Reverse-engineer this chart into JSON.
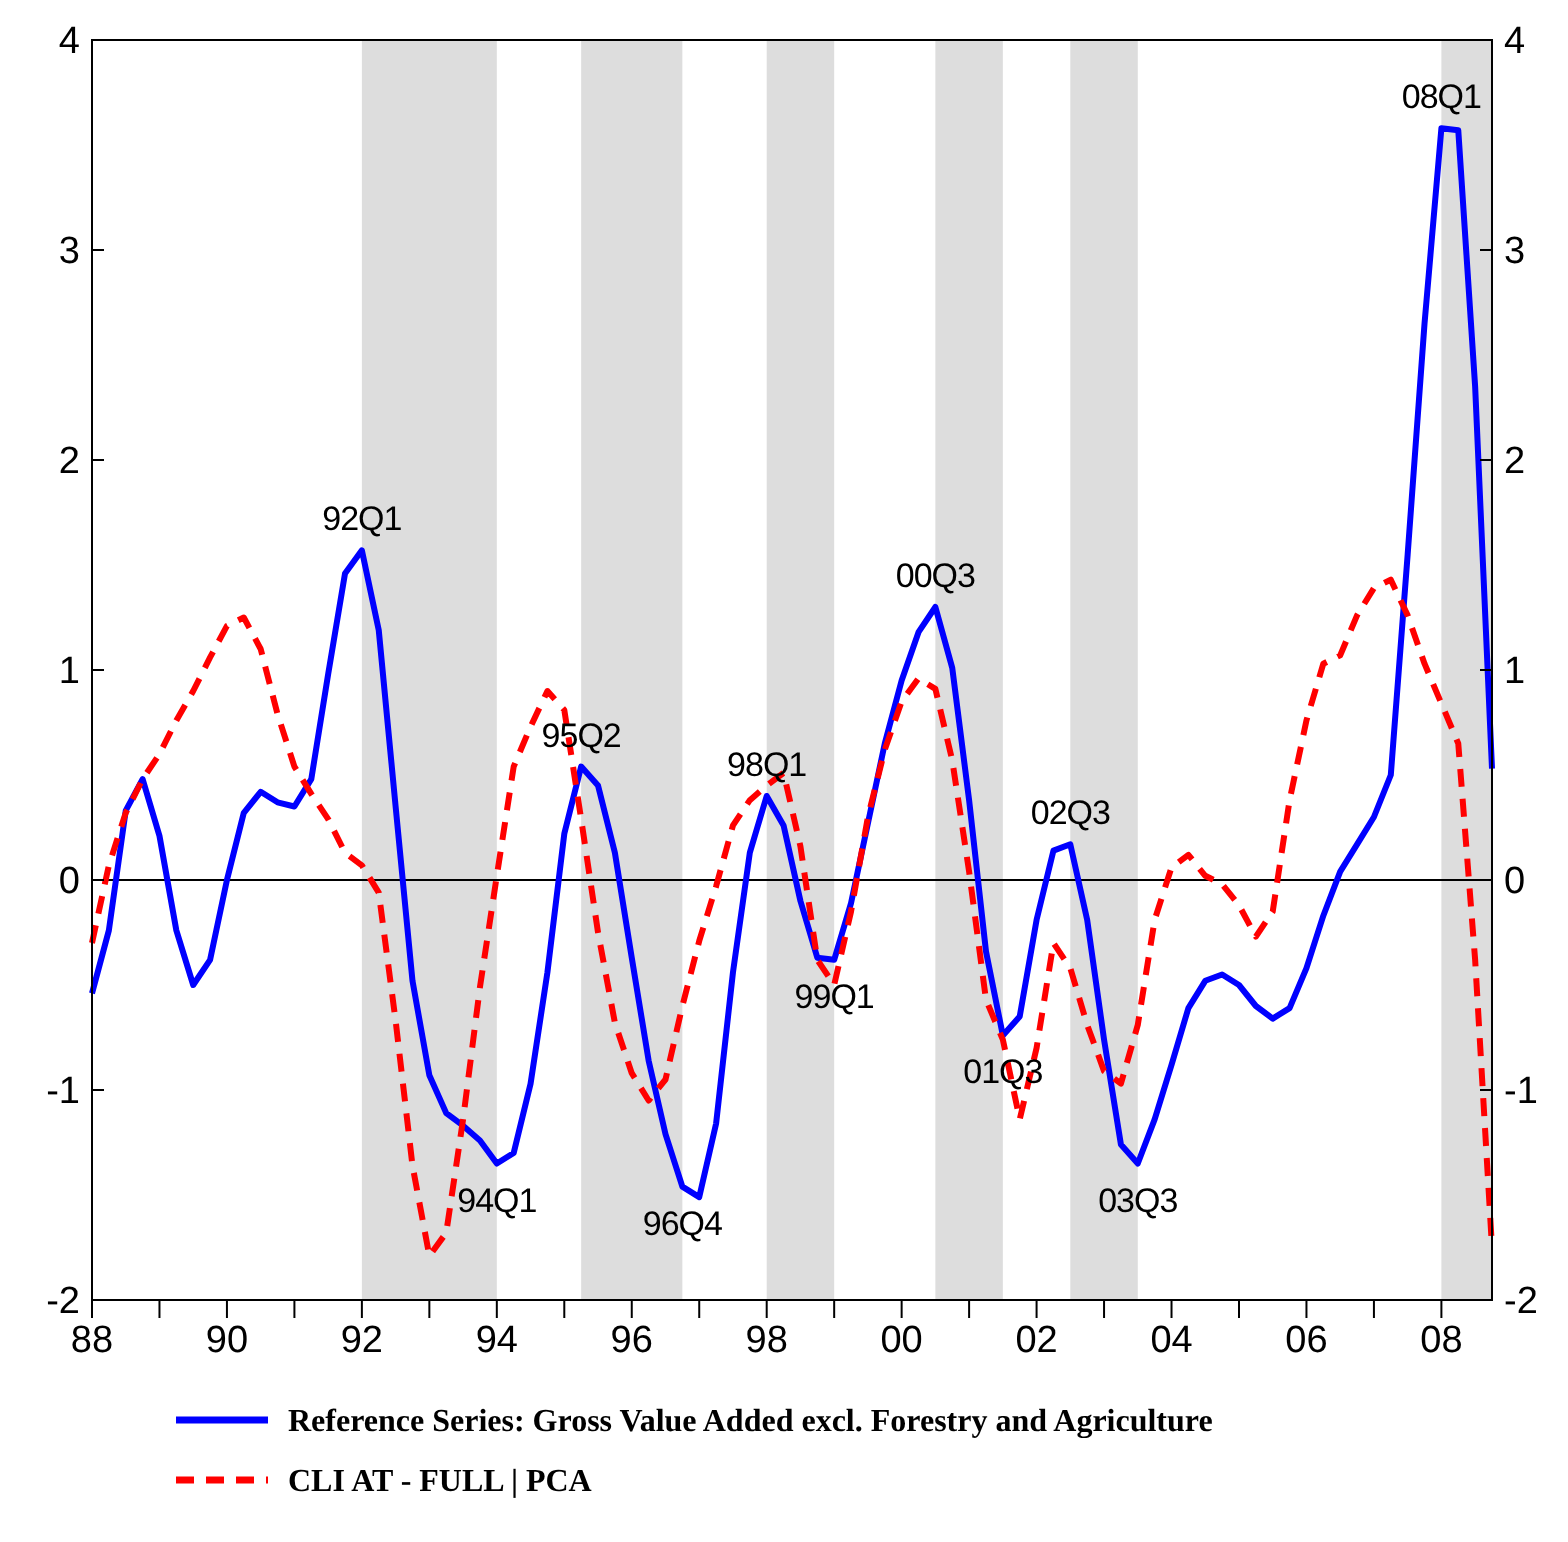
{
  "chart_data": {
    "type": "line",
    "x": [
      1988,
      1988.25,
      1988.5,
      1988.75,
      1989,
      1989.25,
      1989.5,
      1989.75,
      1990,
      1990.25,
      1990.5,
      1990.75,
      1991,
      1991.25,
      1991.5,
      1991.75,
      1992,
      1992.25,
      1992.5,
      1992.75,
      1993,
      1993.25,
      1993.5,
      1993.75,
      1994,
      1994.25,
      1994.5,
      1994.75,
      1995,
      1995.25,
      1995.5,
      1995.75,
      1996,
      1996.25,
      1996.5,
      1996.75,
      1997,
      1997.25,
      1997.5,
      1997.75,
      1998,
      1998.25,
      1998.5,
      1998.75,
      1999,
      1999.25,
      1999.5,
      1999.75,
      2000,
      2000.25,
      2000.5,
      2000.75,
      2001,
      2001.25,
      2001.5,
      2001.75,
      2002,
      2002.25,
      2002.5,
      2002.75,
      2003,
      2003.25,
      2003.5,
      2003.75,
      2004,
      2004.25,
      2004.5,
      2004.75,
      2005,
      2005.25,
      2005.5,
      2005.75,
      2006,
      2006.25,
      2006.5,
      2006.75,
      2007,
      2007.25,
      2007.5,
      2007.75,
      2008,
      2008.25,
      2008.5,
      2008.75
    ],
    "series": [
      {
        "name": "Reference Series: Gross Value Added excl. Forestry and Agriculture",
        "color": "#0000ff",
        "line_style": "solid",
        "values": [
          -0.54,
          -0.24,
          0.33,
          0.48,
          0.21,
          -0.24,
          -0.5,
          -0.38,
          0.0,
          0.32,
          0.42,
          0.37,
          0.35,
          0.48,
          0.98,
          1.46,
          1.57,
          1.19,
          0.35,
          -0.48,
          -0.93,
          -1.11,
          -1.17,
          -1.24,
          -1.35,
          -1.3,
          -0.97,
          -0.44,
          0.22,
          0.54,
          0.45,
          0.13,
          -0.37,
          -0.86,
          -1.21,
          -1.46,
          -1.51,
          -1.16,
          -0.44,
          0.13,
          0.4,
          0.26,
          -0.1,
          -0.37,
          -0.38,
          -0.11,
          0.27,
          0.65,
          0.95,
          1.18,
          1.3,
          1.01,
          0.38,
          -0.34,
          -0.74,
          -0.65,
          -0.19,
          0.14,
          0.17,
          -0.19,
          -0.76,
          -1.26,
          -1.35,
          -1.14,
          -0.88,
          -0.61,
          -0.48,
          -0.45,
          -0.5,
          -0.6,
          -0.66,
          -0.61,
          -0.42,
          -0.17,
          0.04,
          0.17,
          0.3,
          0.5,
          1.55,
          2.65,
          3.58,
          3.57,
          2.35,
          0.53
        ]
      },
      {
        "name": "CLI AT - FULL | PCA",
        "color": "#ff0000",
        "line_style": "dashed",
        "values": [
          -0.3,
          0.07,
          0.32,
          0.48,
          0.6,
          0.76,
          0.9,
          1.06,
          1.21,
          1.25,
          1.1,
          0.79,
          0.54,
          0.41,
          0.29,
          0.13,
          0.07,
          -0.06,
          -0.67,
          -1.36,
          -1.79,
          -1.68,
          -1.14,
          -0.51,
          0.02,
          0.54,
          0.73,
          0.9,
          0.81,
          0.29,
          -0.25,
          -0.68,
          -0.92,
          -1.05,
          -0.95,
          -0.6,
          -0.29,
          -0.03,
          0.26,
          0.38,
          0.45,
          0.51,
          0.16,
          -0.38,
          -0.5,
          -0.15,
          0.3,
          0.62,
          0.85,
          0.96,
          0.91,
          0.57,
          0.04,
          -0.57,
          -0.76,
          -1.14,
          -0.8,
          -0.3,
          -0.42,
          -0.69,
          -0.91,
          -0.97,
          -0.69,
          -0.19,
          0.06,
          0.12,
          0.02,
          -0.02,
          -0.12,
          -0.27,
          -0.15,
          0.38,
          0.76,
          1.03,
          1.07,
          1.26,
          1.39,
          1.43,
          1.26,
          1.03,
          0.84,
          0.65,
          -0.38,
          -1.75
        ]
      }
    ],
    "xlim": [
      1988,
      2008.75
    ],
    "xticks": [
      {
        "value": 1988,
        "label": "88"
      },
      {
        "value": 1989,
        "label": null
      },
      {
        "value": 1990,
        "label": "90"
      },
      {
        "value": 1991,
        "label": null
      },
      {
        "value": 1992,
        "label": "92"
      },
      {
        "value": 1993,
        "label": null
      },
      {
        "value": 1994,
        "label": "94"
      },
      {
        "value": 1995,
        "label": null
      },
      {
        "value": 1996,
        "label": "96"
      },
      {
        "value": 1997,
        "label": null
      },
      {
        "value": 1998,
        "label": "98"
      },
      {
        "value": 1999,
        "label": null
      },
      {
        "value": 2000,
        "label": "00"
      },
      {
        "value": 2001,
        "label": null
      },
      {
        "value": 2002,
        "label": "02"
      },
      {
        "value": 2003,
        "label": null
      },
      {
        "value": 2004,
        "label": "04"
      },
      {
        "value": 2005,
        "label": null
      },
      {
        "value": 2006,
        "label": "06"
      },
      {
        "value": 2007,
        "label": null
      },
      {
        "value": 2008,
        "label": "08"
      }
    ],
    "ylim": [
      -2,
      4
    ],
    "yticks": [
      -2,
      -1,
      0,
      1,
      2,
      3,
      4
    ],
    "y2lim": [
      -2,
      4
    ],
    "y2ticks": [
      -2,
      -1,
      0,
      1,
      2,
      3,
      4
    ],
    "grid": false,
    "legend": "bottom",
    "ref_lines": [
      {
        "axis": "y",
        "value": 0,
        "color": "#000000"
      }
    ],
    "bands": [
      {
        "axis": "x",
        "from": 1992,
        "to": 1994,
        "color": "#dddddd"
      },
      {
        "axis": "x",
        "from": 1995.25,
        "to": 1996.75,
        "color": "#dddddd"
      },
      {
        "axis": "x",
        "from": 1998,
        "to": 1999,
        "color": "#dddddd"
      },
      {
        "axis": "x",
        "from": 2000.5,
        "to": 2001.5,
        "color": "#dddddd"
      },
      {
        "axis": "x",
        "from": 2002.5,
        "to": 2003.5,
        "color": "#dddddd"
      },
      {
        "axis": "x",
        "from": 2008,
        "to": 2008.75,
        "color": "#dddddd"
      }
    ],
    "annotations": [
      {
        "text": "92Q1",
        "x": 1992,
        "y": 1.57
      },
      {
        "text": "94Q1",
        "x": 1994,
        "y": -1.35
      },
      {
        "text": "95Q2",
        "x": 1995.25,
        "y": 0.54
      },
      {
        "text": "96Q4",
        "x": 1996.75,
        "y": -1.46
      },
      {
        "text": "98Q1",
        "x": 1998,
        "y": 0.4
      },
      {
        "text": "99Q1",
        "x": 1999,
        "y": -0.38
      },
      {
        "text": "00Q3",
        "x": 2000.5,
        "y": 1.3
      },
      {
        "text": "01Q3",
        "x": 2001.5,
        "y": -0.74
      },
      {
        "text": "02Q3",
        "x": 2002.5,
        "y": 0.17
      },
      {
        "text": "03Q3",
        "x": 2003.5,
        "y": -1.35
      },
      {
        "text": "08Q1",
        "x": 2008,
        "y": 3.58
      }
    ]
  }
}
